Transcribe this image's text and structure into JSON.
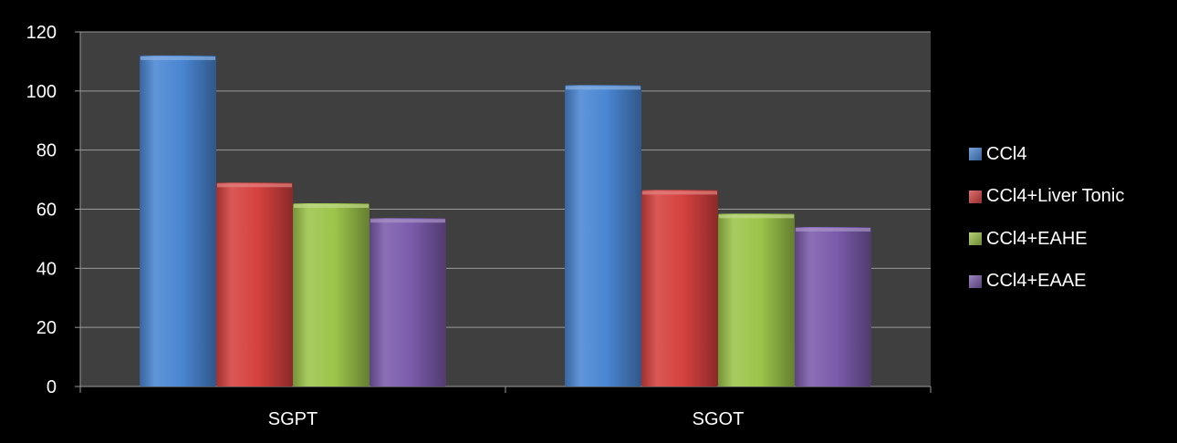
{
  "chart_data": {
    "type": "bar",
    "title": "",
    "xlabel": "",
    "ylabel": "",
    "categories": [
      "SGPT",
      "SGOT"
    ],
    "ylim": [
      0,
      120
    ],
    "yticks": [
      0,
      20,
      40,
      60,
      80,
      100,
      120
    ],
    "ytick_labels": [
      "0",
      "20",
      "40",
      "60",
      "80",
      "100",
      "120"
    ],
    "grid": true,
    "legend_position": "right",
    "series": [
      {
        "name": "CCl4",
        "values": [
          112,
          102
        ],
        "color": "#4a86d3"
      },
      {
        "name": "CCl4+Liver Tonic",
        "values": [
          69,
          66.5
        ],
        "color": "#d5413f"
      },
      {
        "name": "CCl4+EAHE",
        "values": [
          62,
          58.5
        ],
        "color": "#9cc44a"
      },
      {
        "name": "CCl4+EAAE",
        "values": [
          57,
          54
        ],
        "color": "#7b5bab"
      }
    ]
  },
  "colors": {
    "background": "#000000",
    "plot_area": "#3f3f3f",
    "gridline": "#9a9a9a",
    "text": "#ffffff"
  }
}
